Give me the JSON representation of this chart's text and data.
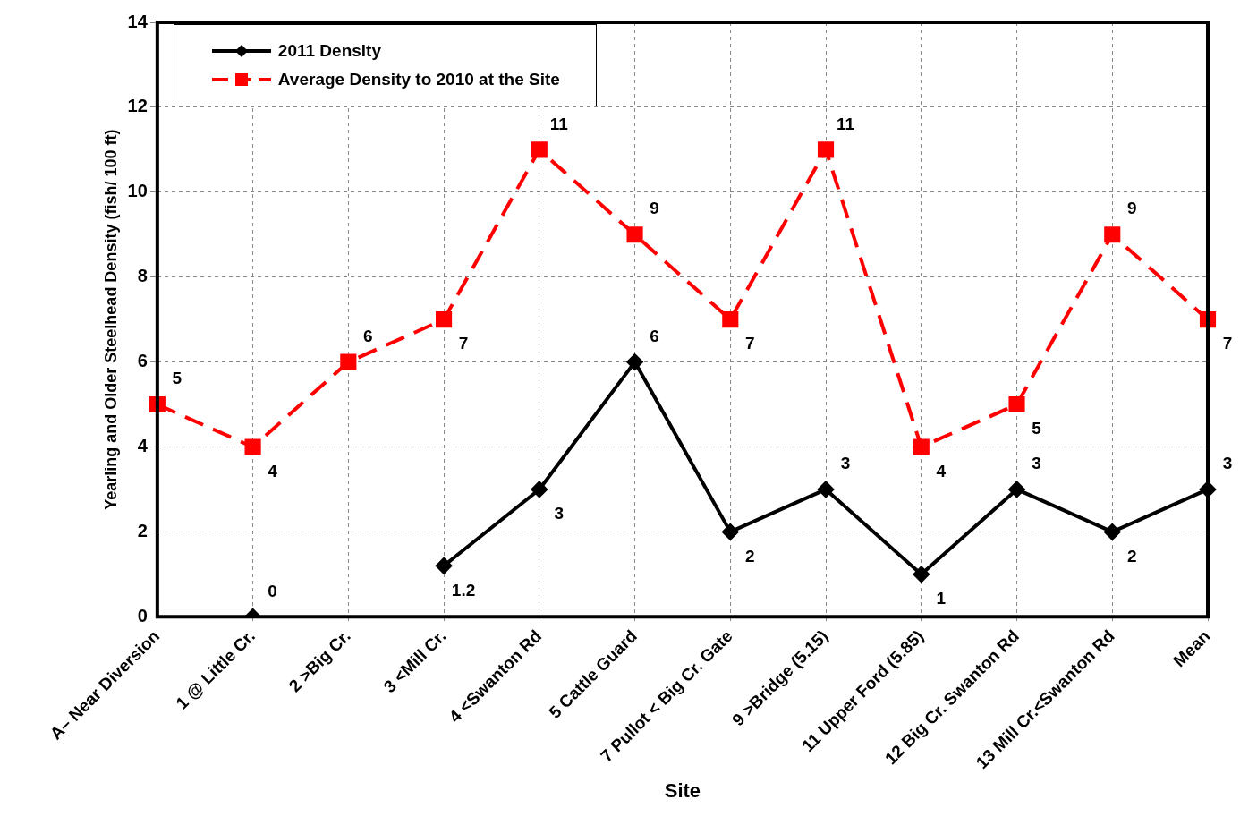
{
  "chart_data": {
    "type": "line",
    "xlabel": "Site",
    "ylabel": "Yearling and Older Steelhead Density (fish/ 100 ft)",
    "categories": [
      "A– Near Diversion",
      "1 @ Little Cr.",
      "2 >Big Cr.",
      "3 <Mill Cr.",
      "4 <Swanton Rd",
      "5 Cattle Guard",
      "7 Pullot < Big Cr. Gate",
      "9 >Bridge (5.15)",
      "11 Upper Ford (5.85)",
      "12 Big Cr. Swanton Rd",
      "13 Mill Cr.<Swanton Rd",
      "Mean"
    ],
    "series": [
      {
        "name": "2011 Density",
        "color": "#000000",
        "marker": "diamond",
        "line_style": "solid",
        "values": [
          null,
          0,
          null,
          1.2,
          3,
          6,
          2,
          3,
          1,
          3,
          2,
          3
        ]
      },
      {
        "name": "Average Density to 2010 at the Site",
        "color": "#ff0000",
        "marker": "square",
        "line_style": "dashed",
        "values": [
          5,
          4,
          6,
          7,
          11,
          9,
          7,
          11,
          4,
          5,
          9,
          7
        ]
      }
    ],
    "ylim": [
      0,
      14
    ],
    "yticks": [
      0,
      2,
      4,
      6,
      8,
      10,
      12,
      14
    ],
    "grid": true,
    "legend": "top left",
    "data_labels": true
  }
}
